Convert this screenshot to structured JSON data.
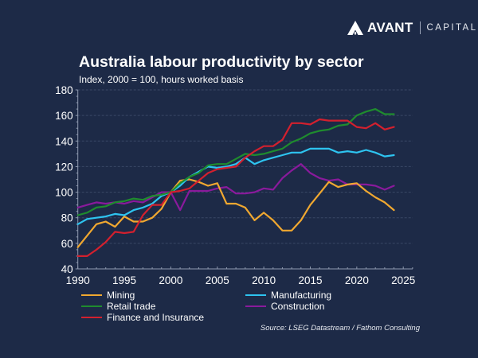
{
  "brand": {
    "name": "AVANT",
    "suffix": "CAPITAL"
  },
  "chart_data": {
    "type": "line",
    "title": "Australia labour productivity by sector",
    "subtitle": "Index, 2000 = 100, hours worked basis",
    "xlabel": "",
    "ylabel": "",
    "xlim": [
      1990,
      2025
    ],
    "ylim": [
      40,
      180
    ],
    "xticks": [
      1990,
      1995,
      2000,
      2005,
      2010,
      2015,
      2020,
      2025
    ],
    "yticks": [
      40,
      60,
      80,
      100,
      120,
      140,
      160,
      180
    ],
    "grid": true,
    "legend_position": "bottom",
    "x": [
      1990,
      1991,
      1992,
      1993,
      1994,
      1995,
      1996,
      1997,
      1998,
      1999,
      2000,
      2001,
      2002,
      2003,
      2004,
      2005,
      2006,
      2007,
      2008,
      2009,
      2010,
      2011,
      2012,
      2013,
      2014,
      2015,
      2016,
      2017,
      2018,
      2019,
      2020,
      2021,
      2022,
      2023,
      2024
    ],
    "series": [
      {
        "name": "Mining",
        "color": "#f0a830",
        "values": [
          57,
          66,
          75,
          77,
          73,
          81,
          77,
          77,
          80,
          87,
          100,
          109,
          110,
          108,
          105,
          107,
          91,
          91,
          88,
          78,
          84,
          78,
          70,
          70,
          78,
          90,
          99,
          108,
          104,
          106,
          107,
          101,
          96,
          92,
          86
        ]
      },
      {
        "name": "Manufacturing",
        "color": "#2ec4f0",
        "values": [
          75,
          79,
          80,
          81,
          83,
          82,
          86,
          88,
          91,
          97,
          100,
          105,
          112,
          116,
          120,
          119,
          120,
          122,
          127,
          122,
          125,
          127,
          129,
          131,
          131,
          134,
          134,
          134,
          131,
          132,
          131,
          133,
          131,
          128,
          129
        ]
      },
      {
        "name": "Retail trade",
        "color": "#1f8c2e",
        "values": [
          82,
          84,
          88,
          89,
          92,
          93,
          95,
          94,
          97,
          98,
          100,
          107,
          112,
          115,
          121,
          122,
          122,
          126,
          130,
          129,
          130,
          132,
          134,
          139,
          142,
          146,
          148,
          149,
          152,
          153,
          160,
          163,
          165,
          161,
          161
        ]
      },
      {
        "name": "Construction",
        "color": "#8a1a9c",
        "values": [
          88,
          90,
          92,
          91,
          92,
          91,
          93,
          92,
          96,
          100,
          100,
          86,
          101,
          101,
          101,
          103,
          104,
          99,
          99,
          100,
          103,
          102,
          111,
          117,
          122,
          115,
          111,
          109,
          110,
          106,
          106,
          106,
          105,
          102,
          105
        ]
      },
      {
        "name": "Finance and Insurance",
        "color": "#d3202e",
        "values": [
          50,
          50,
          55,
          61,
          69,
          68,
          69,
          82,
          90,
          90,
          100,
          101,
          103,
          109,
          115,
          118,
          119,
          120,
          127,
          132,
          136,
          136,
          141,
          154,
          154,
          153,
          157,
          156,
          156,
          156,
          151,
          150,
          154,
          149,
          151
        ]
      }
    ]
  },
  "legend": [
    {
      "name": "Mining",
      "color": "#f0a830"
    },
    {
      "name": "Manufacturing",
      "color": "#2ec4f0"
    },
    {
      "name": "Retail trade",
      "color": "#1f8c2e"
    },
    {
      "name": "Construction",
      "color": "#8a1a9c"
    },
    {
      "name": "Finance and Insurance",
      "color": "#d3202e"
    }
  ],
  "source": "Source: LSEG Datastream / Fathom Consulting"
}
